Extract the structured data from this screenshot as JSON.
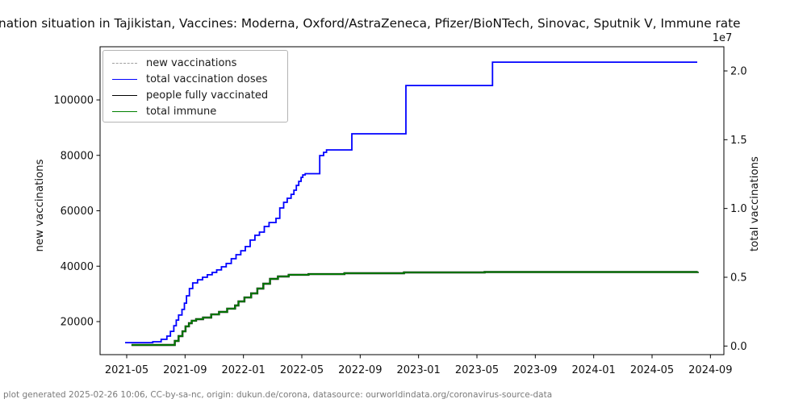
{
  "title": "nation situation in Tajikistan, Vaccines: Moderna, Oxford/AstraZeneca, Pfizer/BioNTech, Sinovac, Sputnik V, Immune rate",
  "footer": "plot generated 2025-02-26 10:06, CC-by-sa-nc, origin: dukun.de/corona, datasource: ourworldindata.org/coronavirus-source-data",
  "axes": {
    "left": {
      "label": "new vaccinations",
      "ticks": [
        "20000",
        "40000",
        "60000",
        "80000",
        "100000"
      ]
    },
    "right": {
      "label": "total vaccinations",
      "offset_text": "1e7",
      "ticks": [
        "0.0",
        "0.5",
        "1.0",
        "1.5",
        "2.0"
      ]
    },
    "x": {
      "ticks": [
        "2021-05",
        "2021-09",
        "2022-01",
        "2022-05",
        "2022-09",
        "2023-01",
        "2023-05",
        "2023-09",
        "2024-01",
        "2024-05",
        "2024-09"
      ]
    }
  },
  "legend": {
    "items": [
      {
        "label": "new vaccinations",
        "color": "#a0a0a0",
        "dash": true
      },
      {
        "label": "total vaccination doses",
        "color": "#0000ff",
        "dash": false
      },
      {
        "label": "people fully vaccinated",
        "color": "#000000",
        "dash": false
      },
      {
        "label": "total immune",
        "color": "#008000",
        "dash": false
      }
    ]
  },
  "chart_data": {
    "type": "line",
    "title": "nation situation in Tajikistan, Vaccines: Moderna, Oxford/AstraZeneca, Pfizer/BioNTech, Sinovac, Sputnik V, Immune rate",
    "xlabel": "",
    "ylabel_left": "new vaccinations",
    "ylabel_right": "total vaccinations",
    "x_range": [
      "2021-03-07",
      "2024-09-28"
    ],
    "left_ylim": [
      8000,
      119000
    ],
    "right_ylim": [
      -600000,
      21750000
    ],
    "right_axis_multiplier": "1e7",
    "grid": false,
    "legend_position": "upper left",
    "x_tick_labels": [
      "2021-05",
      "2021-09",
      "2022-01",
      "2022-05",
      "2022-09",
      "2023-01",
      "2023-05",
      "2023-09",
      "2024-01",
      "2024-05",
      "2024-09"
    ],
    "series": [
      {
        "name": "new vaccinations",
        "axis": "left",
        "color": "#a0a0a0",
        "style": "dashed",
        "points": []
      },
      {
        "name": "total vaccination doses",
        "axis": "right",
        "color": "#0000ff",
        "style": "solid",
        "points": [
          [
            "2021-04-28",
            250000
          ],
          [
            "2021-06-25",
            310000
          ],
          [
            "2021-07-12",
            490000
          ],
          [
            "2021-07-24",
            720000
          ],
          [
            "2021-08-01",
            1070000
          ],
          [
            "2021-08-08",
            1480000
          ],
          [
            "2021-08-13",
            1890000
          ],
          [
            "2021-08-18",
            2250000
          ],
          [
            "2021-08-25",
            2660000
          ],
          [
            "2021-08-30",
            3120000
          ],
          [
            "2021-09-04",
            3650000
          ],
          [
            "2021-09-10",
            4180000
          ],
          [
            "2021-09-17",
            4590000
          ],
          [
            "2021-09-27",
            4820000
          ],
          [
            "2021-10-07",
            5000000
          ],
          [
            "2021-10-17",
            5180000
          ],
          [
            "2021-10-27",
            5350000
          ],
          [
            "2021-11-06",
            5530000
          ],
          [
            "2021-11-16",
            5760000
          ],
          [
            "2021-11-26",
            6000000
          ],
          [
            "2021-12-06",
            6350000
          ],
          [
            "2021-12-16",
            6640000
          ],
          [
            "2021-12-26",
            6930000
          ],
          [
            "2022-01-05",
            7230000
          ],
          [
            "2022-01-15",
            7700000
          ],
          [
            "2022-01-25",
            8050000
          ],
          [
            "2022-02-04",
            8280000
          ],
          [
            "2022-02-14",
            8690000
          ],
          [
            "2022-02-24",
            8980000
          ],
          [
            "2022-03-08",
            9280000
          ],
          [
            "2022-03-16",
            10040000
          ],
          [
            "2022-03-24",
            10450000
          ],
          [
            "2022-04-01",
            10740000
          ],
          [
            "2022-04-09",
            11030000
          ],
          [
            "2022-04-15",
            11330000
          ],
          [
            "2022-04-20",
            11680000
          ],
          [
            "2022-04-25",
            11970000
          ],
          [
            "2022-04-30",
            12260000
          ],
          [
            "2022-05-03",
            12440000
          ],
          [
            "2022-05-08",
            12530000
          ],
          [
            "2022-06-06",
            12530000
          ],
          [
            "2022-06-08",
            13850000
          ],
          [
            "2022-06-16",
            14080000
          ],
          [
            "2022-06-22",
            14260000
          ],
          [
            "2022-08-11",
            14260000
          ],
          [
            "2022-08-14",
            15430000
          ],
          [
            "2022-12-03",
            15430000
          ],
          [
            "2022-12-05",
            18940000
          ],
          [
            "2023-06-01",
            18940000
          ],
          [
            "2023-06-03",
            20640000
          ],
          [
            "2024-08-04",
            20640000
          ]
        ]
      },
      {
        "name": "people fully vaccinated",
        "axis": "right",
        "color": "#000000",
        "style": "solid",
        "points": [
          [
            "2021-05-11",
            80000
          ],
          [
            "2021-08-01",
            80000
          ],
          [
            "2021-08-10",
            370000
          ],
          [
            "2021-08-18",
            720000
          ],
          [
            "2021-08-26",
            1070000
          ],
          [
            "2021-09-02",
            1430000
          ],
          [
            "2021-09-09",
            1660000
          ],
          [
            "2021-09-15",
            1840000
          ],
          [
            "2021-09-24",
            1950000
          ],
          [
            "2021-10-08",
            2070000
          ],
          [
            "2021-10-25",
            2300000
          ],
          [
            "2021-11-11",
            2480000
          ],
          [
            "2021-11-28",
            2720000
          ],
          [
            "2021-12-14",
            2950000
          ],
          [
            "2021-12-21",
            3240000
          ],
          [
            "2022-01-03",
            3530000
          ],
          [
            "2022-01-17",
            3830000
          ],
          [
            "2022-01-30",
            4180000
          ],
          [
            "2022-02-12",
            4530000
          ],
          [
            "2022-02-26",
            4880000
          ],
          [
            "2022-03-12",
            5060000
          ],
          [
            "2022-04-04",
            5180000
          ],
          [
            "2022-05-15",
            5230000
          ],
          [
            "2022-07-29",
            5290000
          ],
          [
            "2022-12-01",
            5350000
          ],
          [
            "2023-05-17",
            5380000
          ],
          [
            "2024-08-05",
            5410000
          ]
        ]
      },
      {
        "name": "total immune",
        "axis": "right",
        "color": "#008000",
        "style": "solid",
        "points": [
          [
            "2021-05-11",
            80000
          ],
          [
            "2021-08-01",
            80000
          ],
          [
            "2021-08-10",
            370000
          ],
          [
            "2021-08-18",
            720000
          ],
          [
            "2021-08-26",
            1070000
          ],
          [
            "2021-09-02",
            1430000
          ],
          [
            "2021-09-09",
            1660000
          ],
          [
            "2021-09-15",
            1840000
          ],
          [
            "2021-09-24",
            1950000
          ],
          [
            "2021-10-08",
            2070000
          ],
          [
            "2021-10-25",
            2300000
          ],
          [
            "2021-11-11",
            2480000
          ],
          [
            "2021-11-28",
            2720000
          ],
          [
            "2021-12-14",
            2950000
          ],
          [
            "2021-12-21",
            3240000
          ],
          [
            "2022-01-03",
            3530000
          ],
          [
            "2022-01-17",
            3830000
          ],
          [
            "2022-01-30",
            4180000
          ],
          [
            "2022-02-12",
            4530000
          ],
          [
            "2022-02-26",
            4880000
          ],
          [
            "2022-03-12",
            5060000
          ],
          [
            "2022-04-04",
            5180000
          ],
          [
            "2022-05-15",
            5230000
          ],
          [
            "2022-07-29",
            5290000
          ],
          [
            "2022-12-01",
            5350000
          ],
          [
            "2023-05-17",
            5380000
          ],
          [
            "2024-08-05",
            5410000
          ]
        ]
      }
    ]
  }
}
